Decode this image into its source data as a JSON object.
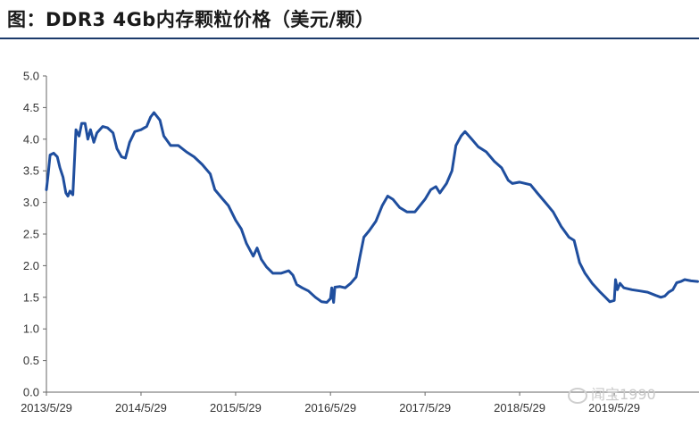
{
  "header": {
    "title": "图：DDR3 4Gb内存颗粒价格（美元/颗）"
  },
  "watermark": {
    "text": "闻宝1990",
    "icon": "wechat-icon"
  },
  "colors": {
    "line": "#1f4e9e",
    "axis": "#666666",
    "title_rule": "#1b3a6b"
  },
  "chart_data": {
    "type": "line",
    "title": "",
    "xlabel": "",
    "ylabel": "",
    "ylim": [
      0,
      5
    ],
    "yticks": [
      "0.0",
      "0.5",
      "1.0",
      "1.5",
      "2.0",
      "2.5",
      "3.0",
      "3.5",
      "4.0",
      "4.5",
      "5.0"
    ],
    "xticks": [
      "2013/5/29",
      "2014/5/29",
      "2015/5/29",
      "2016/5/29",
      "2017/5/29",
      "2018/5/29",
      "2019/5/29"
    ],
    "x_start": "2013/5/29",
    "x_end": "2020/4/20",
    "grid": false,
    "legend": "none",
    "series": [
      {
        "values": [
          [
            "2013/5/29",
            3.2
          ],
          [
            "2013/6/5",
            3.45
          ],
          [
            "2013/6/12",
            3.75
          ],
          [
            "2013/6/26",
            3.78
          ],
          [
            "2013/7/10",
            3.72
          ],
          [
            "2013/7/20",
            3.55
          ],
          [
            "2013/8/1",
            3.4
          ],
          [
            "2013/8/12",
            3.15
          ],
          [
            "2013/8/20",
            3.1
          ],
          [
            "2013/8/28",
            3.18
          ],
          [
            "2013/9/8",
            3.12
          ],
          [
            "2013/9/20",
            4.15
          ],
          [
            "2013/10/2",
            4.05
          ],
          [
            "2013/10/12",
            4.25
          ],
          [
            "2013/10/25",
            4.25
          ],
          [
            "2013/11/5",
            4.0
          ],
          [
            "2013/11/15",
            4.15
          ],
          [
            "2013/11/28",
            3.95
          ],
          [
            "2013/12/10",
            4.1
          ],
          [
            "2014/1/1",
            4.2
          ],
          [
            "2014/1/20",
            4.18
          ],
          [
            "2014/2/10",
            4.1
          ],
          [
            "2014/2/25",
            3.85
          ],
          [
            "2014/3/15",
            3.72
          ],
          [
            "2014/3/30",
            3.7
          ],
          [
            "2014/4/15",
            3.95
          ],
          [
            "2014/5/5",
            4.12
          ],
          [
            "2014/5/29",
            4.15
          ],
          [
            "2014/6/20",
            4.2
          ],
          [
            "2014/7/5",
            4.35
          ],
          [
            "2014/7/18",
            4.42
          ],
          [
            "2014/8/10",
            4.3
          ],
          [
            "2014/8/25",
            4.05
          ],
          [
            "2014/9/20",
            3.9
          ],
          [
            "2014/10/20",
            3.9
          ],
          [
            "2014/11/20",
            3.8
          ],
          [
            "2014/12/20",
            3.72
          ],
          [
            "2015/1/20",
            3.6
          ],
          [
            "2015/2/20",
            3.45
          ],
          [
            "2015/3/10",
            3.2
          ],
          [
            "2015/4/10",
            3.05
          ],
          [
            "2015/5/1",
            2.95
          ],
          [
            "2015/5/29",
            2.72
          ],
          [
            "2015/6/20",
            2.58
          ],
          [
            "2015/7/10",
            2.35
          ],
          [
            "2015/8/5",
            2.15
          ],
          [
            "2015/8/20",
            2.28
          ],
          [
            "2015/9/5",
            2.1
          ],
          [
            "2015/9/25",
            1.98
          ],
          [
            "2015/10/20",
            1.88
          ],
          [
            "2015/11/20",
            1.88
          ],
          [
            "2015/12/20",
            1.92
          ],
          [
            "2016/1/5",
            1.85
          ],
          [
            "2016/1/20",
            1.7
          ],
          [
            "2016/2/10",
            1.65
          ],
          [
            "2016/3/5",
            1.6
          ],
          [
            "2016/4/1",
            1.5
          ],
          [
            "2016/4/25",
            1.43
          ],
          [
            "2016/5/15",
            1.42
          ],
          [
            "2016/5/29",
            1.48
          ],
          [
            "2016/6/3",
            1.65
          ],
          [
            "2016/6/10",
            1.42
          ],
          [
            "2016/6/15",
            1.66
          ],
          [
            "2016/7/5",
            1.67
          ],
          [
            "2016/7/25",
            1.65
          ],
          [
            "2016/8/15",
            1.72
          ],
          [
            "2016/9/5",
            1.82
          ],
          [
            "2016/9/20",
            2.15
          ],
          [
            "2016/10/5",
            2.45
          ],
          [
            "2016/10/25",
            2.55
          ],
          [
            "2016/11/20",
            2.7
          ],
          [
            "2016/12/15",
            2.95
          ],
          [
            "2017/1/5",
            3.1
          ],
          [
            "2017/1/25",
            3.05
          ],
          [
            "2017/2/20",
            2.92
          ],
          [
            "2017/3/20",
            2.85
          ],
          [
            "2017/4/20",
            2.85
          ],
          [
            "2017/5/29",
            3.05
          ],
          [
            "2017/6/20",
            3.2
          ],
          [
            "2017/7/10",
            3.25
          ],
          [
            "2017/7/25",
            3.15
          ],
          [
            "2017/8/20",
            3.3
          ],
          [
            "2017/9/10",
            3.5
          ],
          [
            "2017/9/25",
            3.9
          ],
          [
            "2017/10/15",
            4.05
          ],
          [
            "2017/10/30",
            4.12
          ],
          [
            "2017/11/25",
            4.0
          ],
          [
            "2017/12/20",
            3.88
          ],
          [
            "2018/1/20",
            3.8
          ],
          [
            "2018/2/20",
            3.65
          ],
          [
            "2018/3/20",
            3.55
          ],
          [
            "2018/4/15",
            3.35
          ],
          [
            "2018/5/1",
            3.3
          ],
          [
            "2018/5/29",
            3.32
          ],
          [
            "2018/6/20",
            3.3
          ],
          [
            "2018/7/10",
            3.28
          ],
          [
            "2018/8/5",
            3.15
          ],
          [
            "2018/9/5",
            3.0
          ],
          [
            "2018/10/5",
            2.85
          ],
          [
            "2018/11/5",
            2.62
          ],
          [
            "2018/12/5",
            2.45
          ],
          [
            "2018/12/25",
            2.4
          ],
          [
            "2019/1/15",
            2.05
          ],
          [
            "2019/2/5",
            1.88
          ],
          [
            "2019/3/5",
            1.72
          ],
          [
            "2019/4/5",
            1.58
          ],
          [
            "2019/4/25",
            1.5
          ],
          [
            "2019/5/12",
            1.43
          ],
          [
            "2019/5/29",
            1.45
          ],
          [
            "2019/6/3",
            1.78
          ],
          [
            "2019/6/10",
            1.62
          ],
          [
            "2019/6/20",
            1.72
          ],
          [
            "2019/7/5",
            1.65
          ],
          [
            "2019/8/5",
            1.62
          ],
          [
            "2019/9/5",
            1.6
          ],
          [
            "2019/10/5",
            1.58
          ],
          [
            "2019/11/5",
            1.53
          ],
          [
            "2019/11/25",
            1.5
          ],
          [
            "2019/12/10",
            1.52
          ],
          [
            "2019/12/25",
            1.58
          ],
          [
            "2020/1/10",
            1.62
          ],
          [
            "2020/1/25",
            1.73
          ],
          [
            "2020/2/10",
            1.75
          ],
          [
            "2020/2/25",
            1.78
          ],
          [
            "2020/3/20",
            1.76
          ],
          [
            "2020/4/15",
            1.75
          ]
        ]
      }
    ]
  }
}
